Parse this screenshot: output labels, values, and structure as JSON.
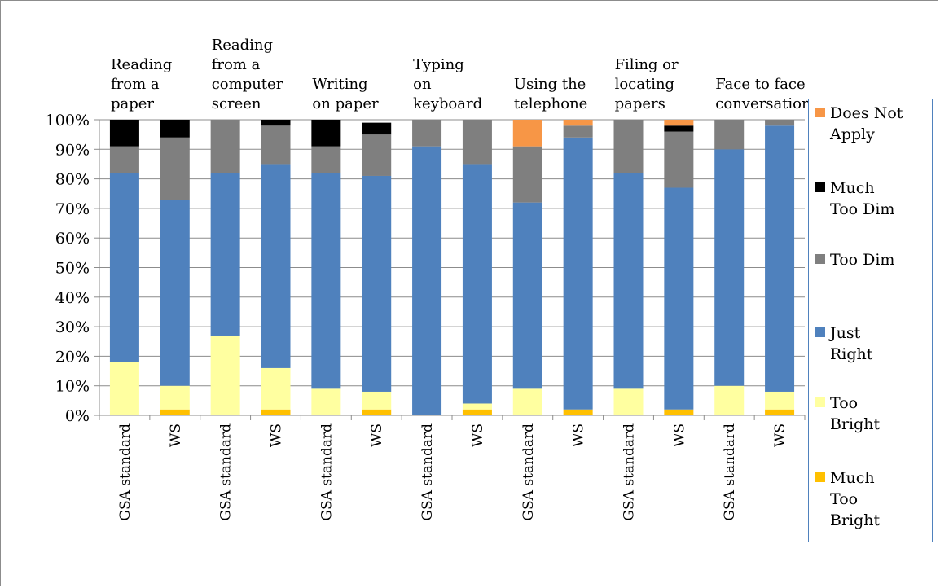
{
  "chart_data": {
    "type": "bar",
    "stacked": true,
    "percent": true,
    "groups": [
      {
        "label_lines": [
          "Reading",
          "from a",
          "paper"
        ],
        "bars": [
          "GSA standard",
          "WS"
        ]
      },
      {
        "label_lines": [
          "Reading",
          "from a",
          "computer",
          "screen"
        ],
        "bars": [
          "GSA standard",
          "WS"
        ]
      },
      {
        "label_lines": [
          "Writing",
          "on paper"
        ],
        "bars": [
          "GSA standard",
          "WS"
        ]
      },
      {
        "label_lines": [
          "Typing",
          "on",
          "keyboard"
        ],
        "bars": [
          "GSA standard",
          "WS"
        ]
      },
      {
        "label_lines": [
          "Using the",
          "telephone"
        ],
        "bars": [
          "GSA standard",
          "WS"
        ]
      },
      {
        "label_lines": [
          "Filing or",
          "locating",
          "papers"
        ],
        "bars": [
          "GSA standard",
          "WS"
        ]
      },
      {
        "label_lines": [
          "Face to face",
          "conversations"
        ],
        "bars": [
          "GSA standard",
          "WS"
        ]
      }
    ],
    "series": [
      {
        "name": "Much Too Bright",
        "color": "#ffc000",
        "values": [
          0,
          2,
          0,
          2,
          0,
          2,
          0,
          2,
          0,
          2,
          0,
          2,
          0,
          2
        ]
      },
      {
        "name": "Too Bright",
        "color": "#ffffa0",
        "values": [
          18,
          8,
          27,
          14,
          9,
          6,
          0,
          2,
          9,
          0,
          9,
          0,
          10,
          6
        ]
      },
      {
        "name": "Just Right",
        "color": "#4f81bd",
        "values": [
          64,
          63,
          55,
          69,
          73,
          73,
          91,
          81,
          63,
          92,
          73,
          75,
          80,
          90
        ]
      },
      {
        "name": "Too Dim",
        "color": "#7f7f7f",
        "values": [
          9,
          21,
          18,
          13,
          9,
          14,
          9,
          15,
          19,
          4,
          18,
          19,
          10,
          2
        ]
      },
      {
        "name": "Much Too Dim",
        "color": "#000000",
        "values": [
          9,
          6,
          0,
          2,
          9,
          4,
          0,
          0,
          0,
          0,
          0,
          2,
          0,
          0
        ]
      },
      {
        "name": "Does Not Apply",
        "color": "#f79646",
        "values": [
          0,
          0,
          0,
          0,
          0,
          0,
          0,
          0,
          9,
          2,
          0,
          2,
          0,
          0
        ]
      }
    ],
    "legend_order": [
      "Does Not Apply",
      "Much Too Dim",
      "Too Dim",
      "Just Right",
      "Too Bright",
      "Much Too Bright"
    ],
    "legend_label_lines": {
      "Does Not Apply": [
        "Does Not",
        "Apply"
      ],
      "Much Too Dim": [
        "Much",
        "Too Dim"
      ],
      "Too Dim": [
        "Too Dim"
      ],
      "Just Right": [
        "Just",
        "Right"
      ],
      "Too Bright": [
        "Too",
        "Bright"
      ],
      "Much Too Bright": [
        "Much",
        "Too",
        "Bright"
      ]
    },
    "ylim": [
      0,
      100
    ],
    "yticks": [
      "0%",
      "10%",
      "20%",
      "30%",
      "40%",
      "50%",
      "60%",
      "70%",
      "80%",
      "90%",
      "100%"
    ],
    "grid": true,
    "legend_position": "right"
  }
}
